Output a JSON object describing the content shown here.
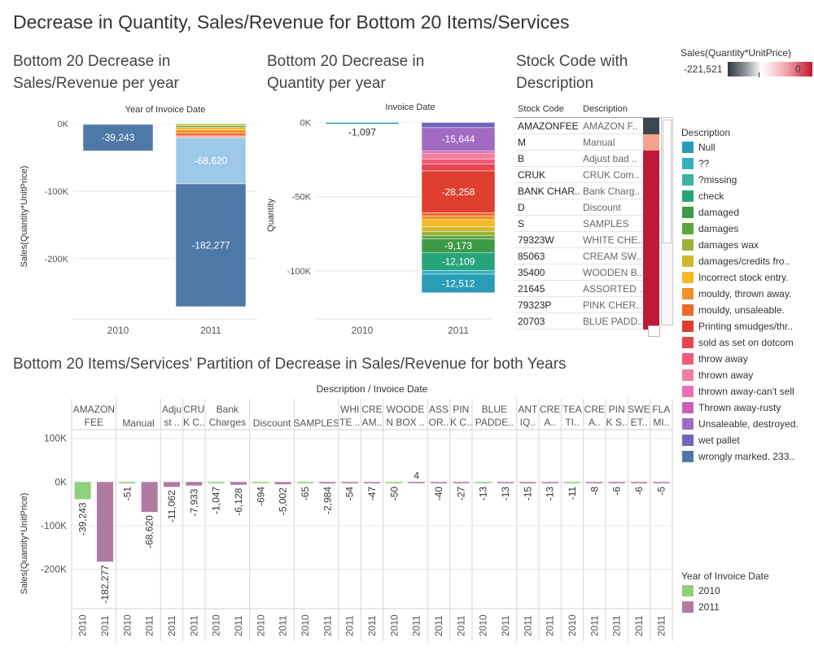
{
  "page_title": "Decrease in Quantity, Sales/Revenue for Bottom 20 Items/Services",
  "panel_sales_title": [
    "Bottom 20 Decrease in",
    "Sales/Revenue per year"
  ],
  "panel_qty_title": [
    "Bottom 20 Decrease in",
    "Quantity per year"
  ],
  "panel_stock_title": [
    "Stock Code with",
    "Description"
  ],
  "panel_partition_title": "Bottom 20 Items/Services' Partition of Decrease in Sales/Revenue for both Years",
  "color_legend": {
    "title": "Sales(Quantity*UnitPrice)",
    "min": "-221,521",
    "max": "0"
  },
  "description_legend": {
    "title": "Description",
    "items": [
      {
        "label": "Null",
        "color": "#2a9cb8"
      },
      {
        "label": "??",
        "color": "#34b0bf"
      },
      {
        "label": "?missing",
        "color": "#3db3a0"
      },
      {
        "label": "check",
        "color": "#27a57a"
      },
      {
        "label": "damaged",
        "color": "#3d9b48"
      },
      {
        "label": "damages",
        "color": "#5aa640"
      },
      {
        "label": "damages wax",
        "color": "#9cb33a"
      },
      {
        "label": "damages/credits fro..",
        "color": "#cfb72e"
      },
      {
        "label": "Incorrect stock entry.",
        "color": "#f6b92a"
      },
      {
        "label": "mouldy, thrown away.",
        "color": "#f0902a"
      },
      {
        "label": "mouldy, unsaleable.",
        "color": "#ec6a2a"
      },
      {
        "label": "Printing smudges/thr..",
        "color": "#df3f2f"
      },
      {
        "label": "sold as set on dotcom",
        "color": "#e64650"
      },
      {
        "label": "throw away",
        "color": "#f05b79"
      },
      {
        "label": "thrown away",
        "color": "#f47ca2"
      },
      {
        "label": "thrown away-can't sell",
        "color": "#ec6fb5"
      },
      {
        "label": "Thrown away-rusty",
        "color": "#c861b5"
      },
      {
        "label": "Unsaleable, destroyed.",
        "color": "#a26bc2"
      },
      {
        "label": "wet pallet",
        "color": "#6f66b8"
      },
      {
        "label": "wrongly marked. 233..",
        "color": "#4e79a7"
      }
    ]
  },
  "year_legend": {
    "title": "Year of Invoice Date",
    "items": [
      {
        "label": "2010",
        "color": "#8fd07c"
      },
      {
        "label": "2011",
        "color": "#b07aa1"
      }
    ]
  },
  "stock_table": {
    "headers": [
      "Stock Code",
      "Description"
    ],
    "rows": [
      {
        "code": "AMAZONFEE",
        "desc": "AMAZON F..",
        "color": "#3d4550"
      },
      {
        "code": "M",
        "desc": "Manual",
        "color": "#f4a28c"
      },
      {
        "code": "B",
        "desc": "Adjust bad ..",
        "color": "#c0183a"
      },
      {
        "code": "CRUK",
        "desc": "CRUK Com..",
        "color": "#c0183a"
      },
      {
        "code": "BANK CHAR..",
        "desc": "Bank Charg..",
        "color": "#c0183a"
      },
      {
        "code": "D",
        "desc": "Discount",
        "color": "#c0183a"
      },
      {
        "code": "S",
        "desc": "SAMPLES",
        "color": "#c0183a"
      },
      {
        "code": "79323W",
        "desc": "WHITE CHE..",
        "color": "#c0183a"
      },
      {
        "code": "85063",
        "desc": "CREAM SW..",
        "color": "#c0183a"
      },
      {
        "code": "35400",
        "desc": "WOODEN B..",
        "color": "#c0183a"
      },
      {
        "code": "21645",
        "desc": "ASSORTED ..",
        "color": "#c0183a"
      },
      {
        "code": "79323P",
        "desc": "PINK CHER..",
        "color": "#c0183a"
      },
      {
        "code": "20703",
        "desc": "BLUE PADD..",
        "color": "#c0183a"
      }
    ]
  },
  "chart_data": [
    {
      "type": "bar",
      "stacked": true,
      "title": "Bottom 20 Decrease in Sales/Revenue per year",
      "header": "Year of Invoice Date",
      "ylabel": "Sales(Quantity*UnitPrice)",
      "ylim": [
        -280000,
        5000
      ],
      "yticks": [
        {
          "v": 0,
          "label": "0K"
        },
        {
          "v": -100000,
          "label": "-100K"
        },
        {
          "v": -200000,
          "label": "-200K"
        }
      ],
      "categories": [
        "2010",
        "2011"
      ],
      "stacks": [
        [
          {
            "color": "#5aa640",
            "value": -1000
          },
          {
            "color": "#4e79a7",
            "value": -39243,
            "label": "-39,243"
          }
        ],
        [
          {
            "color": "#cfb72e",
            "value": -3000
          },
          {
            "color": "#5aa640",
            "value": -2500
          },
          {
            "color": "#f6b92a",
            "value": -3500
          },
          {
            "color": "#f0902a",
            "value": -5000
          },
          {
            "color": "#ec6a2a",
            "value": -4000
          },
          {
            "color": "#f4a28c",
            "value": -2500
          },
          {
            "color": "#9dc8e8",
            "value": -68620,
            "label": "-68,620"
          },
          {
            "color": "#4e79a7",
            "value": -182277,
            "label": "-182,277"
          }
        ]
      ]
    },
    {
      "type": "bar",
      "stacked": true,
      "title": "Bottom 20 Decrease in Quantity per year",
      "header": "Invoice Date",
      "ylabel": "Quantity",
      "ylim": [
        -128000,
        3000
      ],
      "yticks": [
        {
          "v": 0,
          "label": "0K"
        },
        {
          "v": -50000,
          "label": "-50K"
        },
        {
          "v": -100000,
          "label": "-100K"
        }
      ],
      "categories": [
        "2010",
        "2011"
      ],
      "stacks": [
        [
          {
            "color": "#2a9cb8",
            "value": -1097,
            "label": "-1,097"
          }
        ],
        [
          {
            "color": "#6f66b8",
            "value": -3500
          },
          {
            "color": "#a26bc2",
            "value": -15644,
            "label": "-15,644"
          },
          {
            "color": "#c861b5",
            "value": -1500
          },
          {
            "color": "#f47ca2",
            "value": -4000
          },
          {
            "color": "#f05b79",
            "value": -3500
          },
          {
            "color": "#e64650",
            "value": -4500
          },
          {
            "color": "#df3f2f",
            "value": -28258,
            "label": "-28,258"
          },
          {
            "color": "#ec6a2a",
            "value": -2000
          },
          {
            "color": "#f0902a",
            "value": -2500
          },
          {
            "color": "#f6b92a",
            "value": -5000
          },
          {
            "color": "#cfb72e",
            "value": -3000
          },
          {
            "color": "#9cb33a",
            "value": -3000
          },
          {
            "color": "#5aa640",
            "value": -2000
          },
          {
            "color": "#3d9b48",
            "value": -9173,
            "label": "-9,173"
          },
          {
            "color": "#27a57a",
            "value": -12109,
            "label": "-12,109"
          },
          {
            "color": "#34b0bf",
            "value": -2500
          },
          {
            "color": "#2a9cb8",
            "value": -12512,
            "label": "-12,512"
          }
        ]
      ]
    },
    {
      "type": "bar",
      "title": "Bottom 20 Items/Services' Partition of Decrease in Sales/Revenue for both Years",
      "header": "Description / Invoice Date",
      "ylabel": "Sales(Quantity*UnitPrice)",
      "ylim": [
        -290000,
        120000
      ],
      "yticks": [
        {
          "v": 100000,
          "label": "100K"
        },
        {
          "v": 0,
          "label": "0K"
        },
        {
          "v": -100000,
          "label": "-100K"
        },
        {
          "v": -200000,
          "label": "-200K"
        }
      ],
      "groups": [
        {
          "label": [
            "AMAZON",
            "FEE"
          ],
          "bars": [
            {
              "year": "2010",
              "value": -39243,
              "label": "-39,243"
            },
            {
              "year": "2011",
              "value": -182277,
              "label": "-182,277"
            }
          ]
        },
        {
          "label": [
            "Manual"
          ],
          "bars": [
            {
              "year": "2010",
              "value": -51,
              "label": "-51"
            },
            {
              "year": "2011",
              "value": -68620,
              "label": "-68,620"
            }
          ]
        },
        {
          "label": [
            "Adju",
            "st .."
          ],
          "bars": [
            {
              "year": "2011",
              "value": -11062,
              "label": "-11,062"
            }
          ]
        },
        {
          "label": [
            "CRU",
            "K C.."
          ],
          "bars": [
            {
              "year": "2011",
              "value": -7933,
              "label": "-7,933"
            }
          ]
        },
        {
          "label": [
            "Bank",
            "Charges"
          ],
          "bars": [
            {
              "year": "2010",
              "value": -1047,
              "label": "-1,047"
            },
            {
              "year": "2011",
              "value": -6128,
              "label": "-6,128"
            }
          ]
        },
        {
          "label": [
            "Discount"
          ],
          "bars": [
            {
              "year": "2010",
              "value": -694,
              "label": "-694"
            },
            {
              "year": "2011",
              "value": -5002,
              "label": "-5,002"
            }
          ]
        },
        {
          "label": [
            "SAMPLES"
          ],
          "bars": [
            {
              "year": "2010",
              "value": -65,
              "label": "-65"
            },
            {
              "year": "2011",
              "value": -2984,
              "label": "-2,984"
            }
          ]
        },
        {
          "label": [
            "WHI",
            "TE .."
          ],
          "bars": [
            {
              "year": "2011",
              "value": -54,
              "label": "-54"
            }
          ]
        },
        {
          "label": [
            "CRE",
            "AM.."
          ],
          "bars": [
            {
              "year": "2011",
              "value": -47,
              "label": "-47"
            }
          ]
        },
        {
          "label": [
            "WOODE",
            "N BOX .."
          ],
          "bars": [
            {
              "year": "2010",
              "value": -50,
              "label": "-50"
            },
            {
              "year": "2011",
              "value": 4,
              "label": "4"
            }
          ]
        },
        {
          "label": [
            "ASS",
            "OR.."
          ],
          "bars": [
            {
              "year": "2011",
              "value": -40,
              "label": "-40"
            }
          ]
        },
        {
          "label": [
            "PIN",
            "K C.."
          ],
          "bars": [
            {
              "year": "2011",
              "value": -27,
              "label": "-27"
            }
          ]
        },
        {
          "label": [
            "BLUE",
            "PADDE.."
          ],
          "bars": [
            {
              "year": "2010",
              "value": -13,
              "label": "-13"
            },
            {
              "year": "2011",
              "value": -13,
              "label": "-13"
            }
          ]
        },
        {
          "label": [
            "ANT",
            "IQ.."
          ],
          "bars": [
            {
              "year": "2011",
              "value": -15,
              "label": "-15"
            }
          ]
        },
        {
          "label": [
            "CRE",
            "A.."
          ],
          "bars": [
            {
              "year": "2011",
              "value": -13,
              "label": "-13"
            }
          ]
        },
        {
          "label": [
            "TEA",
            "TI.."
          ],
          "bars": [
            {
              "year": "2010",
              "value": -11,
              "label": "-11"
            }
          ]
        },
        {
          "label": [
            "CRE",
            "A.."
          ],
          "bars": [
            {
              "year": "2011",
              "value": -8,
              "label": "-8"
            }
          ]
        },
        {
          "label": [
            "PIN",
            "K S.."
          ],
          "bars": [
            {
              "year": "2011",
              "value": -6,
              "label": "-6"
            }
          ]
        },
        {
          "label": [
            "SWE",
            "ET.."
          ],
          "bars": [
            {
              "year": "2011",
              "value": -6,
              "label": "-6"
            }
          ]
        },
        {
          "label": [
            "FLA",
            "MI.."
          ],
          "bars": [
            {
              "year": "2011",
              "value": -5,
              "label": "-5"
            }
          ]
        }
      ]
    }
  ]
}
